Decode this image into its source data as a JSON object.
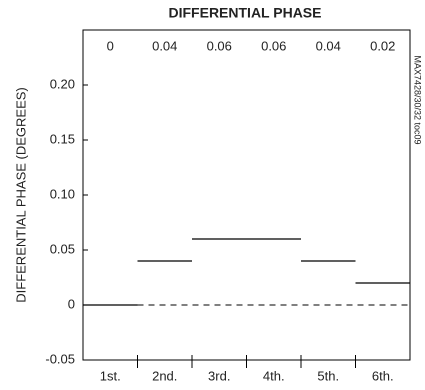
{
  "chart_data": {
    "type": "step",
    "title": "DIFFERENTIAL PHASE",
    "y_label": "DIFFERENTIAL PHASE (DEGREES)",
    "side_note": "MAX7428/30/32 toc09",
    "categories": [
      "1st.",
      "2nd.",
      "3rd.",
      "4th.",
      "5th.",
      "6th."
    ],
    "values": [
      0,
      0.04,
      0.06,
      0.06,
      0.04,
      0.02
    ],
    "color": "#000000",
    "ylim": [
      -0.05,
      0.25
    ],
    "yticks": [
      {
        "value": 0.2,
        "label": "0.20"
      },
      0.15,
      {
        "value": 0.1,
        "label": "0.10"
      },
      0.05,
      0,
      -0.05
    ]
  }
}
